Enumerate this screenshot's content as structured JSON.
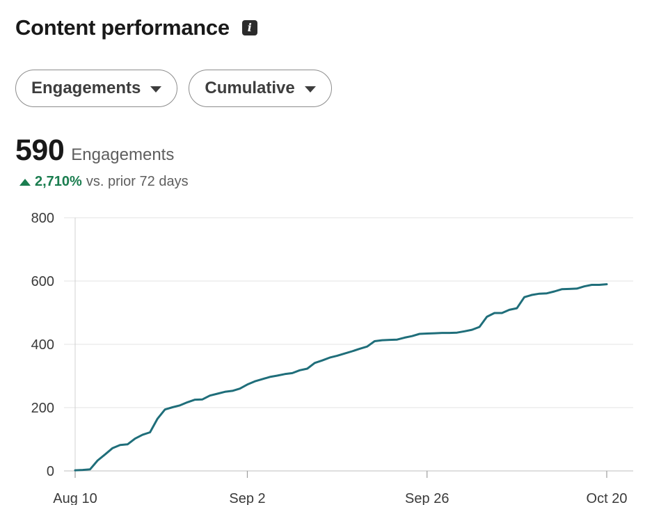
{
  "header": {
    "title": "Content performance",
    "info_icon": "info-icon"
  },
  "filters": [
    {
      "label": "Engagements",
      "icon": "chevron-down-icon"
    },
    {
      "label": "Cumulative",
      "icon": "chevron-down-icon"
    }
  ],
  "summary": {
    "value": "590",
    "label": "Engagements",
    "change_pct": "2,710%",
    "change_suffix": "vs. prior 72 days",
    "change_color": "#1a7d4f"
  },
  "chart_data": {
    "type": "line",
    "title": "",
    "xlabel": "",
    "ylabel": "",
    "ylim": [
      0,
      800
    ],
    "yticks": [
      0,
      200,
      400,
      600,
      800
    ],
    "xticks": [
      "Aug 10",
      "Sep 2",
      "Sep 26",
      "Oct 20"
    ],
    "grid": true,
    "line_color": "#1f6e7a",
    "series": [
      {
        "x": [
          "Aug 10",
          "Aug 11",
          "Aug 12",
          "Aug 13",
          "Aug 14",
          "Aug 15",
          "Aug 16",
          "Aug 17",
          "Aug 18",
          "Aug 19",
          "Aug 20",
          "Aug 21",
          "Aug 22",
          "Aug 23",
          "Aug 24",
          "Aug 25",
          "Aug 26",
          "Aug 27",
          "Aug 28",
          "Aug 29",
          "Aug 30",
          "Aug 31",
          "Sep 1",
          "Sep 2",
          "Sep 3",
          "Sep 4",
          "Sep 5",
          "Sep 6",
          "Sep 7",
          "Sep 8",
          "Sep 9",
          "Sep 10",
          "Sep 11",
          "Sep 12",
          "Sep 13",
          "Sep 14",
          "Sep 15",
          "Sep 16",
          "Sep 17",
          "Sep 18",
          "Sep 19",
          "Sep 20",
          "Sep 21",
          "Sep 22",
          "Sep 23",
          "Sep 24",
          "Sep 25",
          "Sep 26",
          "Sep 27",
          "Sep 28",
          "Sep 29",
          "Sep 30",
          "Oct 1",
          "Oct 2",
          "Oct 3",
          "Oct 4",
          "Oct 5",
          "Oct 6",
          "Oct 7",
          "Oct 8",
          "Oct 9",
          "Oct 10",
          "Oct 11",
          "Oct 12",
          "Oct 13",
          "Oct 14",
          "Oct 15",
          "Oct 16",
          "Oct 17",
          "Oct 18",
          "Oct 19",
          "Oct 20"
        ],
        "values": [
          2,
          3,
          5,
          33,
          52,
          72,
          82,
          84,
          102,
          114,
          122,
          165,
          194,
          201,
          207,
          217,
          225,
          226,
          238,
          244,
          250,
          253,
          260,
          273,
          283,
          290,
          297,
          301,
          306,
          309,
          318,
          323,
          341,
          349,
          358,
          364,
          371,
          378,
          386,
          393,
          410,
          413,
          414,
          415,
          421,
          426,
          433,
          434,
          435,
          436,
          436,
          437,
          441,
          446,
          455,
          487,
          499,
          499,
          509,
          514,
          549,
          556,
          560,
          561,
          567,
          574,
          575,
          576,
          583,
          588,
          588,
          590
        ]
      }
    ]
  }
}
